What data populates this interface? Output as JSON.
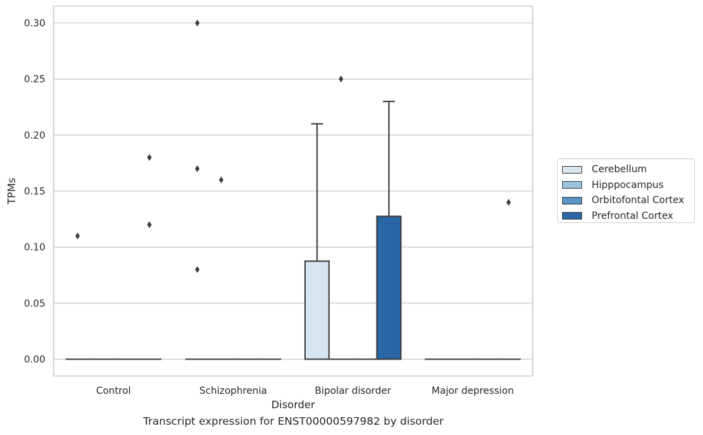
{
  "caption": "Transcript expression for ENST00000597982 by disorder",
  "chart_data": {
    "type": "box",
    "title": "",
    "xlabel": "Disorder",
    "ylabel": "TPMs",
    "ylim": [
      -0.015,
      0.315
    ],
    "yticks": [
      0.0,
      0.05,
      0.1,
      0.15,
      0.2,
      0.25,
      0.3
    ],
    "ytick_labels": [
      "0.00",
      "0.05",
      "0.10",
      "0.15",
      "0.20",
      "0.25",
      "0.30"
    ],
    "grid": "horizontal",
    "legend_position": "right",
    "categories": [
      "Control",
      "Schizophrenia",
      "Bipolar disorder",
      "Major depression"
    ],
    "series": [
      {
        "name": "Cerebellum",
        "color": "#d7e5f1",
        "boxes": [
          {
            "q1": 0.0,
            "median": 0.0,
            "q3": 0.0,
            "whislo": 0.0,
            "whishi": 0.0,
            "fliers": [
              0.11
            ]
          },
          {
            "q1": 0.0,
            "median": 0.0,
            "q3": 0.0,
            "whislo": 0.0,
            "whishi": 0.0,
            "fliers": [
              0.08,
              0.17,
              0.3
            ]
          },
          {
            "q1": 0.0,
            "median": 0.0,
            "q3": 0.0875,
            "whislo": 0.0,
            "whishi": 0.21,
            "fliers": []
          },
          {
            "q1": 0.0,
            "median": 0.0,
            "q3": 0.0,
            "whislo": 0.0,
            "whishi": 0.0,
            "fliers": []
          }
        ]
      },
      {
        "name": "Hipppocampus",
        "color": "#9bc3de",
        "boxes": [
          {
            "q1": 0.0,
            "median": 0.0,
            "q3": 0.0,
            "whislo": 0.0,
            "whishi": 0.0,
            "fliers": []
          },
          {
            "q1": 0.0,
            "median": 0.0,
            "q3": 0.0,
            "whislo": 0.0,
            "whishi": 0.0,
            "fliers": [
              0.16
            ]
          },
          {
            "q1": 0.0,
            "median": 0.0,
            "q3": 0.0,
            "whislo": 0.0,
            "whishi": 0.0,
            "fliers": [
              0.25
            ]
          },
          {
            "q1": 0.0,
            "median": 0.0,
            "q3": 0.0,
            "whislo": 0.0,
            "whishi": 0.0,
            "fliers": []
          }
        ]
      },
      {
        "name": "Orbitofontal Cortex",
        "color": "#5795c5",
        "boxes": [
          {
            "q1": 0.0,
            "median": 0.0,
            "q3": 0.0,
            "whislo": 0.0,
            "whishi": 0.0,
            "fliers": []
          },
          {
            "q1": 0.0,
            "median": 0.0,
            "q3": 0.0,
            "whislo": 0.0,
            "whishi": 0.0,
            "fliers": []
          },
          {
            "q1": 0.0,
            "median": 0.0,
            "q3": 0.0,
            "whislo": 0.0,
            "whishi": 0.0,
            "fliers": []
          },
          {
            "q1": 0.0,
            "median": 0.0,
            "q3": 0.0,
            "whislo": 0.0,
            "whishi": 0.0,
            "fliers": []
          }
        ]
      },
      {
        "name": "Prefrontal Cortex",
        "color": "#2866a5",
        "boxes": [
          {
            "q1": 0.0,
            "median": 0.0,
            "q3": 0.0,
            "whislo": 0.0,
            "whishi": 0.0,
            "fliers": [
              0.12,
              0.18
            ]
          },
          {
            "q1": 0.0,
            "median": 0.0,
            "q3": 0.0,
            "whislo": 0.0,
            "whishi": 0.0,
            "fliers": []
          },
          {
            "q1": 0.0,
            "median": 0.0,
            "q3": 0.1275,
            "whislo": 0.0,
            "whishi": 0.23,
            "fliers": []
          },
          {
            "q1": 0.0,
            "median": 0.0,
            "q3": 0.0,
            "whislo": 0.0,
            "whishi": 0.0,
            "fliers": [
              0.14
            ]
          }
        ]
      }
    ]
  }
}
